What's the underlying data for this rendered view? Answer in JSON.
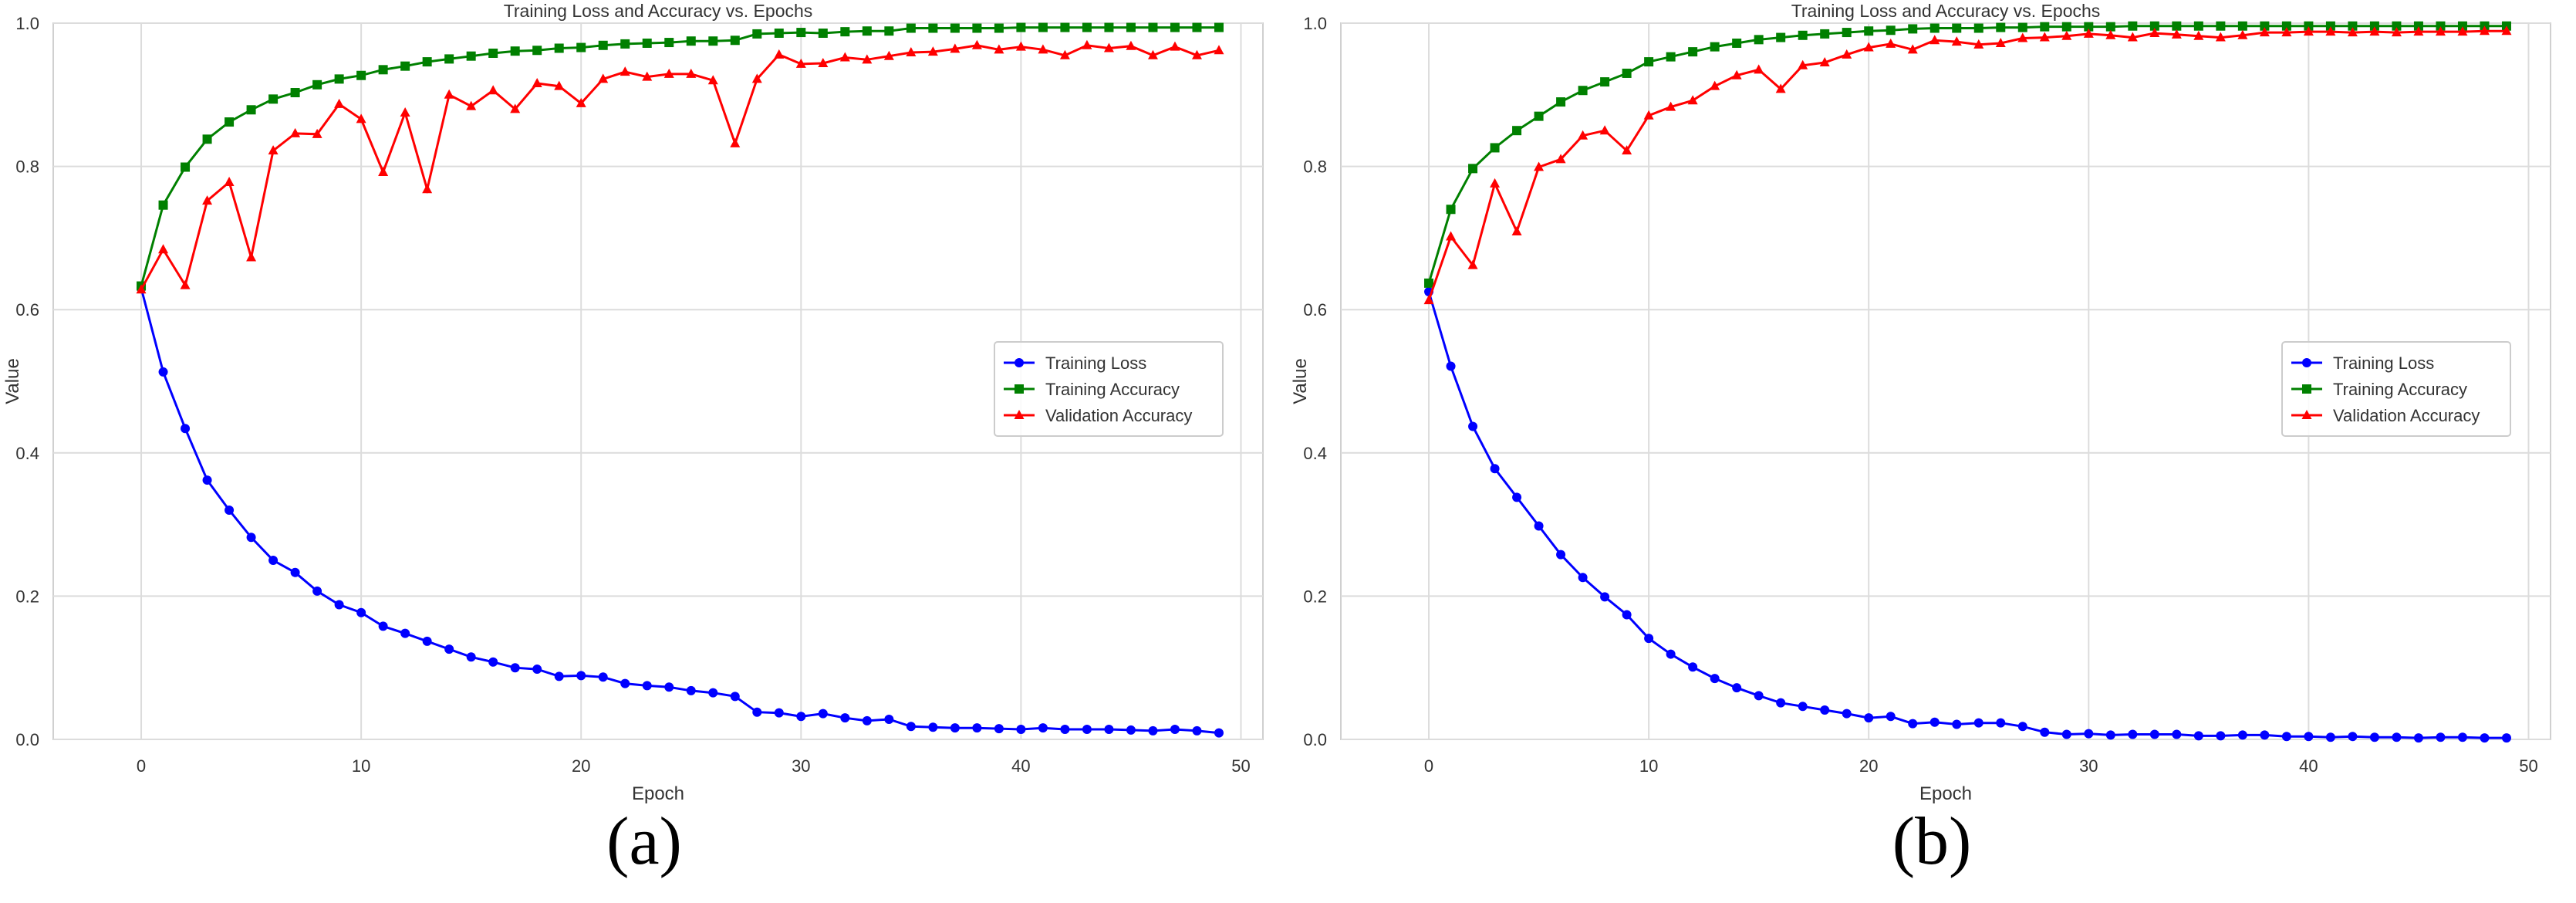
{
  "chart_data": [
    {
      "type": "line",
      "panel_label": "a",
      "title": "Training Loss and Accuracy vs. Epochs",
      "xlabel": "Epoch",
      "ylabel": "Value",
      "xlim": [
        -4,
        51
      ],
      "ylim": [
        0,
        1.0
      ],
      "xticks": [
        0,
        10,
        20,
        30,
        40,
        50
      ],
      "yticks": [
        "0.0",
        "0.2",
        "0.4",
        "0.6",
        "0.8",
        "1.0"
      ],
      "grid": true,
      "legend_position": "center-right",
      "x": [
        0,
        1,
        2,
        3,
        4,
        5,
        6,
        7,
        8,
        9,
        10,
        11,
        12,
        13,
        14,
        15,
        16,
        17,
        18,
        19,
        20,
        21,
        22,
        23,
        24,
        25,
        26,
        27,
        28,
        29,
        30,
        31,
        32,
        33,
        34,
        35,
        36,
        37,
        38,
        39,
        40,
        41,
        42,
        43,
        44,
        45,
        46,
        47,
        48,
        49
      ],
      "series": [
        {
          "name": "Training Loss",
          "color": "#0000ff",
          "marker": "circle",
          "values": [
            0.63,
            0.513,
            0.434,
            0.362,
            0.32,
            0.282,
            0.25,
            0.233,
            0.207,
            0.188,
            0.177,
            0.158,
            0.148,
            0.137,
            0.126,
            0.115,
            0.108,
            0.1,
            0.098,
            0.088,
            0.089,
            0.087,
            0.078,
            0.075,
            0.073,
            0.068,
            0.065,
            0.06,
            0.038,
            0.037,
            0.032,
            0.036,
            0.03,
            0.026,
            0.028,
            0.018,
            0.017,
            0.016,
            0.016,
            0.015,
            0.014,
            0.016,
            0.014,
            0.014,
            0.014,
            0.013,
            0.012,
            0.014,
            0.012,
            0.009
          ]
        },
        {
          "name": "Training Accuracy",
          "color": "#008000",
          "marker": "square",
          "values": [
            0.633,
            0.746,
            0.799,
            0.838,
            0.862,
            0.879,
            0.894,
            0.903,
            0.914,
            0.922,
            0.927,
            0.935,
            0.94,
            0.946,
            0.95,
            0.954,
            0.958,
            0.961,
            0.962,
            0.965,
            0.966,
            0.969,
            0.971,
            0.972,
            0.973,
            0.975,
            0.975,
            0.976,
            0.985,
            0.986,
            0.987,
            0.986,
            0.988,
            0.989,
            0.989,
            0.993,
            0.993,
            0.993,
            0.993,
            0.993,
            0.994,
            0.994,
            0.994,
            0.994,
            0.994,
            0.994,
            0.994,
            0.994,
            0.994,
            0.994
          ]
        },
        {
          "name": "Validation Accuracy",
          "color": "#ff0000",
          "marker": "triangle",
          "values": [
            0.628,
            0.684,
            0.634,
            0.752,
            0.778,
            0.673,
            0.822,
            0.846,
            0.845,
            0.887,
            0.866,
            0.792,
            0.875,
            0.768,
            0.9,
            0.884,
            0.906,
            0.88,
            0.916,
            0.912,
            0.888,
            0.922,
            0.932,
            0.925,
            0.929,
            0.929,
            0.92,
            0.832,
            0.922,
            0.956,
            0.943,
            0.944,
            0.952,
            0.949,
            0.954,
            0.959,
            0.96,
            0.964,
            0.969,
            0.963,
            0.967,
            0.963,
            0.955,
            0.969,
            0.965,
            0.968,
            0.955,
            0.967,
            0.955,
            0.962
          ]
        }
      ]
    },
    {
      "type": "line",
      "panel_label": "b",
      "title": "Training Loss and Accuracy vs. Epochs",
      "xlabel": "Epoch",
      "ylabel": "Value",
      "xlim": [
        -4,
        51
      ],
      "ylim": [
        0,
        1.0
      ],
      "xticks": [
        0,
        10,
        20,
        30,
        40,
        50
      ],
      "yticks": [
        "0.0",
        "0.2",
        "0.4",
        "0.6",
        "0.8",
        "1.0"
      ],
      "grid": true,
      "legend_position": "center-right",
      "x": [
        0,
        1,
        2,
        3,
        4,
        5,
        6,
        7,
        8,
        9,
        10,
        11,
        12,
        13,
        14,
        15,
        16,
        17,
        18,
        19,
        20,
        21,
        22,
        23,
        24,
        25,
        26,
        27,
        28,
        29,
        30,
        31,
        32,
        33,
        34,
        35,
        36,
        37,
        38,
        39,
        40,
        41,
        42,
        43,
        44,
        45,
        46,
        47,
        48,
        49
      ],
      "series": [
        {
          "name": "Training Loss",
          "color": "#0000ff",
          "marker": "circle",
          "values": [
            0.625,
            0.521,
            0.437,
            0.378,
            0.338,
            0.298,
            0.258,
            0.226,
            0.199,
            0.174,
            0.141,
            0.119,
            0.101,
            0.085,
            0.072,
            0.061,
            0.051,
            0.046,
            0.041,
            0.036,
            0.03,
            0.032,
            0.022,
            0.024,
            0.021,
            0.023,
            0.023,
            0.018,
            0.01,
            0.007,
            0.008,
            0.006,
            0.007,
            0.007,
            0.007,
            0.005,
            0.005,
            0.006,
            0.006,
            0.004,
            0.004,
            0.003,
            0.004,
            0.003,
            0.003,
            0.002,
            0.003,
            0.003,
            0.002,
            0.002
          ]
        },
        {
          "name": "Training Accuracy",
          "color": "#008000",
          "marker": "square",
          "values": [
            0.637,
            0.74,
            0.797,
            0.826,
            0.85,
            0.87,
            0.89,
            0.906,
            0.918,
            0.93,
            0.946,
            0.953,
            0.96,
            0.967,
            0.972,
            0.977,
            0.98,
            0.983,
            0.985,
            0.987,
            0.989,
            0.99,
            0.992,
            0.993,
            0.993,
            0.993,
            0.994,
            0.994,
            0.995,
            0.995,
            0.995,
            0.995,
            0.996,
            0.996,
            0.996,
            0.996,
            0.996,
            0.996,
            0.996,
            0.996,
            0.996,
            0.996,
            0.996,
            0.996,
            0.996,
            0.996,
            0.996,
            0.996,
            0.996,
            0.996
          ]
        },
        {
          "name": "Validation Accuracy",
          "color": "#ff0000",
          "marker": "triangle",
          "values": [
            0.613,
            0.702,
            0.662,
            0.776,
            0.709,
            0.799,
            0.81,
            0.843,
            0.85,
            0.822,
            0.871,
            0.883,
            0.892,
            0.912,
            0.927,
            0.935,
            0.908,
            0.941,
            0.945,
            0.956,
            0.966,
            0.971,
            0.963,
            0.976,
            0.974,
            0.97,
            0.972,
            0.979,
            0.98,
            0.982,
            0.985,
            0.983,
            0.98,
            0.986,
            0.984,
            0.982,
            0.98,
            0.983,
            0.987,
            0.987,
            0.988,
            0.988,
            0.987,
            0.988,
            0.987,
            0.988,
            0.988,
            0.988,
            0.989,
            0.989
          ]
        }
      ]
    }
  ],
  "captions": {
    "a": "(a)",
    "b": "(b)"
  }
}
